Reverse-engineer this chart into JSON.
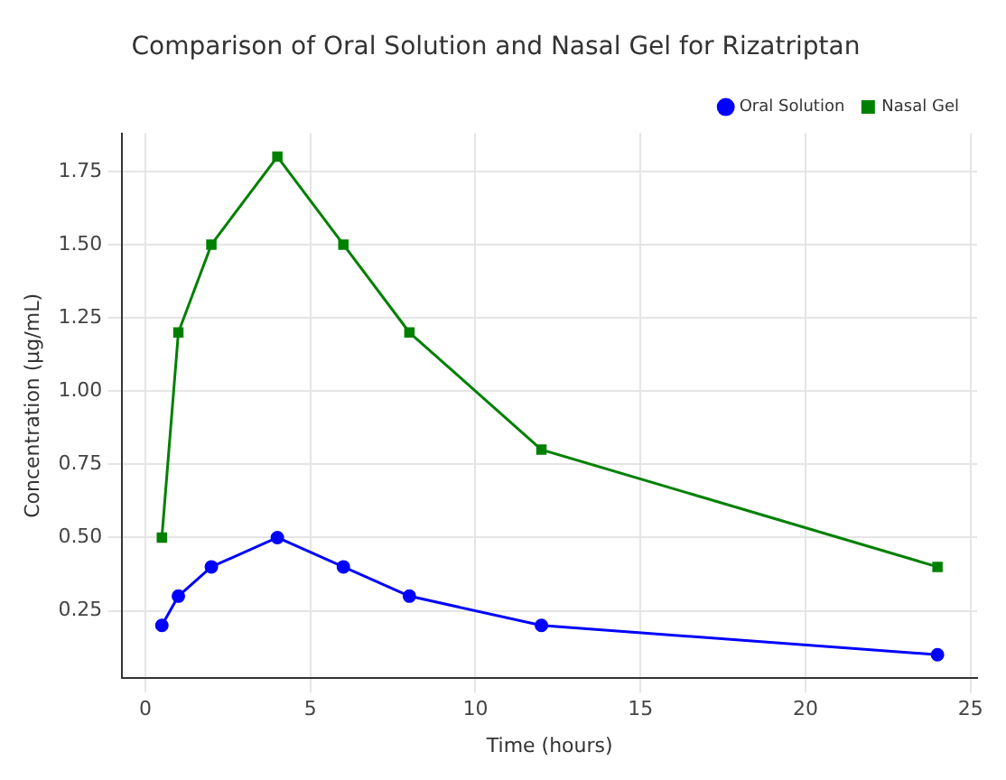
{
  "chart_data": {
    "type": "line",
    "title": "Comparison of Oral Solution and Nasal Gel for Rizatriptan",
    "xlabel": "Time (hours)",
    "ylabel": "Concentration (µg/mL)",
    "xlim": [
      -0.7,
      25.2
    ],
    "xticks": [
      0,
      5,
      10,
      15,
      20,
      25
    ],
    "ylim": [
      0.02,
      1.88
    ],
    "yticks": [
      0.25,
      {
        "value": 0.5,
        "label": "0.50"
      },
      0.75,
      {
        "value": 1,
        "label": "1.00"
      },
      1.25,
      {
        "value": 1.5,
        "label": "1.50"
      },
      1.75
    ],
    "grid": true,
    "legend": "top right",
    "series": [
      {
        "name": "Oral Solution",
        "color": "#0000ff",
        "marker": "circle",
        "x": [
          0.5,
          1,
          2,
          4,
          6,
          8,
          12,
          24
        ],
        "values": [
          0.2,
          0.3,
          0.4,
          0.5,
          0.4,
          0.3,
          0.2,
          0.1
        ]
      },
      {
        "name": "Nasal Gel",
        "color": "#008000",
        "marker": "square",
        "x": [
          0.5,
          1,
          2,
          4,
          6,
          8,
          12,
          24
        ],
        "values": [
          0.5,
          1.2,
          1.5,
          1.8,
          1.5,
          1.2,
          0.8,
          0.4
        ]
      }
    ]
  }
}
